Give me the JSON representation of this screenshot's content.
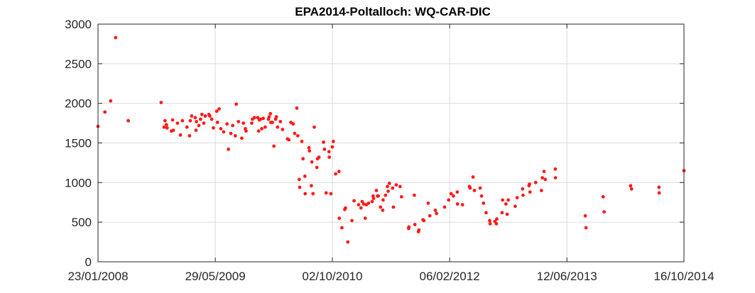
{
  "chart_data": {
    "type": "scatter",
    "title": "EPA2014-Poltalloch: WQ-CAR-DIC",
    "xlabel": "",
    "ylabel": "",
    "x_type": "date",
    "xlim": [
      "2008-01-23",
      "2014-10-16"
    ],
    "ylim": [
      0,
      3000
    ],
    "x_ticks": [
      "2008-01-23",
      "2009-05-29",
      "2010-10-02",
      "2012-02-06",
      "2013-06-12",
      "2014-10-16"
    ],
    "x_tick_labels": [
      "23/01/2008",
      "29/05/2009",
      "02/10/2010",
      "06/02/2012",
      "12/06/2013",
      "16/10/2014"
    ],
    "y_ticks": [
      0,
      500,
      1000,
      1500,
      2000,
      2500,
      3000
    ],
    "y_tick_labels": [
      "0",
      "500",
      "1000",
      "1500",
      "2000",
      "2500",
      "3000"
    ],
    "grid": true,
    "marker_color": "#ff1a1a",
    "series": [
      {
        "points": [
          [
            "2008-01-23",
            1710
          ],
          [
            "2008-02-21",
            1890
          ],
          [
            "2008-03-16",
            2030
          ],
          [
            "2008-04-06",
            2830
          ],
          [
            "2008-05-29",
            1780
          ],
          [
            "2008-10-14",
            2010
          ],
          [
            "2008-10-26",
            1700
          ],
          [
            "2008-10-30",
            1780
          ],
          [
            "2008-11-05",
            1730
          ],
          [
            "2008-11-08",
            1690
          ],
          [
            "2008-11-26",
            1650
          ],
          [
            "2008-12-01",
            1790
          ],
          [
            "2008-12-04",
            1660
          ],
          [
            "2008-12-21",
            1750
          ],
          [
            "2009-01-03",
            1600
          ],
          [
            "2009-01-11",
            1780
          ],
          [
            "2009-01-30",
            1700
          ],
          [
            "2009-02-10",
            1590
          ],
          [
            "2009-02-13",
            1780
          ],
          [
            "2009-02-19",
            1840
          ],
          [
            "2009-03-06",
            1820
          ],
          [
            "2009-03-09",
            1660
          ],
          [
            "2009-03-11",
            1770
          ],
          [
            "2009-03-21",
            1720
          ],
          [
            "2009-03-28",
            1800
          ],
          [
            "2009-04-03",
            1860
          ],
          [
            "2009-04-11",
            1750
          ],
          [
            "2009-04-17",
            1840
          ],
          [
            "2009-05-02",
            1860
          ],
          [
            "2009-05-06",
            1840
          ],
          [
            "2009-05-14",
            1800
          ],
          [
            "2009-05-21",
            1690
          ],
          [
            "2009-06-04",
            1900
          ],
          [
            "2009-06-07",
            1760
          ],
          [
            "2009-06-14",
            1930
          ],
          [
            "2009-06-21",
            1680
          ],
          [
            "2009-07-03",
            1640
          ],
          [
            "2009-07-17",
            1740
          ],
          [
            "2009-07-23",
            1420
          ],
          [
            "2009-08-02",
            1620
          ],
          [
            "2009-08-10",
            1720
          ],
          [
            "2009-08-21",
            1590
          ],
          [
            "2009-08-25",
            1990
          ],
          [
            "2009-09-03",
            1770
          ],
          [
            "2009-09-17",
            1560
          ],
          [
            "2009-09-24",
            1750
          ],
          [
            "2009-10-02",
            1680
          ],
          [
            "2009-10-05",
            1650
          ],
          [
            "2009-10-29",
            1750
          ],
          [
            "2009-11-01",
            1800
          ],
          [
            "2009-11-09",
            1820
          ],
          [
            "2009-11-23",
            1820
          ],
          [
            "2009-11-27",
            1650
          ],
          [
            "2009-11-30",
            1790
          ],
          [
            "2009-12-05",
            1800
          ],
          [
            "2009-12-10",
            1680
          ],
          [
            "2009-12-16",
            1810
          ],
          [
            "2009-12-24",
            1700
          ],
          [
            "2010-01-07",
            1800
          ],
          [
            "2010-01-10",
            1830
          ],
          [
            "2010-01-15",
            1870
          ],
          [
            "2010-01-17",
            1760
          ],
          [
            "2010-01-23",
            1760
          ],
          [
            "2010-01-30",
            1460
          ],
          [
            "2010-02-06",
            1800
          ],
          [
            "2010-02-09",
            1830
          ],
          [
            "2010-02-14",
            1700
          ],
          [
            "2010-02-26",
            1770
          ],
          [
            "2010-03-07",
            1670
          ],
          [
            "2010-03-28",
            1550
          ],
          [
            "2010-04-03",
            1540
          ],
          [
            "2010-04-11",
            1760
          ],
          [
            "2010-04-21",
            1740
          ],
          [
            "2010-04-27",
            1620
          ],
          [
            "2010-05-06",
            1940
          ],
          [
            "2010-05-10",
            1590
          ],
          [
            "2010-05-16",
            1040
          ],
          [
            "2010-05-18",
            940
          ],
          [
            "2010-05-27",
            1520
          ],
          [
            "2010-06-01",
            1300
          ],
          [
            "2010-06-09",
            1080
          ],
          [
            "2010-06-10",
            860
          ],
          [
            "2010-06-26",
            1440
          ],
          [
            "2010-06-28",
            1400
          ],
          [
            "2010-07-06",
            960
          ],
          [
            "2010-07-08",
            1260
          ],
          [
            "2010-07-13",
            860
          ],
          [
            "2010-07-18",
            1700
          ],
          [
            "2010-07-29",
            1190
          ],
          [
            "2010-08-01",
            1300
          ],
          [
            "2010-08-07",
            1320
          ],
          [
            "2010-08-26",
            1510
          ],
          [
            "2010-08-30",
            1420
          ],
          [
            "2010-09-06",
            870
          ],
          [
            "2010-09-18",
            1390
          ],
          [
            "2010-09-19",
            1320
          ],
          [
            "2010-09-26",
            860
          ],
          [
            "2010-10-02",
            1450
          ],
          [
            "2010-10-06",
            1520
          ],
          [
            "2010-10-16",
            1110
          ],
          [
            "2010-10-30",
            1140
          ],
          [
            "2010-10-31",
            550
          ],
          [
            "2010-11-11",
            430
          ],
          [
            "2010-11-23",
            660
          ],
          [
            "2010-11-26",
            680
          ],
          [
            "2010-12-06",
            250
          ],
          [
            "2010-12-23",
            520
          ],
          [
            "2011-01-01",
            770
          ],
          [
            "2011-01-20",
            720
          ],
          [
            "2011-01-30",
            680
          ],
          [
            "2011-02-04",
            760
          ],
          [
            "2011-02-11",
            730
          ],
          [
            "2011-02-17",
            550
          ],
          [
            "2011-02-22",
            720
          ],
          [
            "2011-03-03",
            740
          ],
          [
            "2011-03-18",
            760
          ],
          [
            "2011-03-22",
            830
          ],
          [
            "2011-03-24",
            800
          ],
          [
            "2011-04-05",
            900
          ],
          [
            "2011-04-09",
            830
          ],
          [
            "2011-04-13",
            830
          ],
          [
            "2011-04-22",
            690
          ],
          [
            "2011-05-01",
            650
          ],
          [
            "2011-05-03",
            780
          ],
          [
            "2011-05-13",
            840
          ],
          [
            "2011-05-21",
            950
          ],
          [
            "2011-05-24",
            890
          ],
          [
            "2011-05-29",
            990
          ],
          [
            "2011-06-12",
            930
          ],
          [
            "2011-06-15",
            690
          ],
          [
            "2011-06-27",
            970
          ],
          [
            "2011-07-13",
            950
          ],
          [
            "2011-07-19",
            820
          ],
          [
            "2011-08-18",
            420
          ],
          [
            "2011-08-19",
            440
          ],
          [
            "2011-09-11",
            840
          ],
          [
            "2011-09-13",
            470
          ],
          [
            "2011-09-28",
            380
          ],
          [
            "2011-09-30",
            400
          ],
          [
            "2011-10-17",
            530
          ],
          [
            "2011-10-21",
            520
          ],
          [
            "2011-11-08",
            740
          ],
          [
            "2011-11-15",
            580
          ],
          [
            "2011-12-08",
            650
          ],
          [
            "2011-12-13",
            610
          ],
          [
            "2012-01-16",
            690
          ],
          [
            "2012-02-02",
            780
          ],
          [
            "2012-02-12",
            860
          ],
          [
            "2012-02-22",
            830
          ],
          [
            "2012-03-09",
            880
          ],
          [
            "2012-03-10",
            730
          ],
          [
            "2012-03-31",
            720
          ],
          [
            "2012-04-29",
            950
          ],
          [
            "2012-05-02",
            930
          ],
          [
            "2012-05-14",
            1070
          ],
          [
            "2012-05-20",
            900
          ],
          [
            "2012-06-13",
            930
          ],
          [
            "2012-06-19",
            830
          ],
          [
            "2012-06-27",
            740
          ],
          [
            "2012-07-08",
            620
          ],
          [
            "2012-07-23",
            520
          ],
          [
            "2012-07-25",
            480
          ],
          [
            "2012-08-14",
            510
          ],
          [
            "2012-08-20",
            480
          ],
          [
            "2012-08-22",
            540
          ],
          [
            "2012-09-13",
            620
          ],
          [
            "2012-09-15",
            780
          ],
          [
            "2012-09-29",
            730
          ],
          [
            "2012-10-04",
            600
          ],
          [
            "2012-10-09",
            780
          ],
          [
            "2012-11-07",
            700
          ],
          [
            "2012-11-15",
            810
          ],
          [
            "2012-12-08",
            920
          ],
          [
            "2012-12-10",
            840
          ],
          [
            "2013-01-04",
            960
          ],
          [
            "2013-01-06",
            980
          ],
          [
            "2013-01-08",
            880
          ],
          [
            "2013-02-01",
            1000
          ],
          [
            "2013-02-25",
            900
          ],
          [
            "2013-03-01",
            1060
          ],
          [
            "2013-03-08",
            1140
          ],
          [
            "2013-03-13",
            1040
          ],
          [
            "2013-04-24",
            1170
          ],
          [
            "2013-04-25",
            1060
          ],
          [
            "2013-08-28",
            580
          ],
          [
            "2013-08-31",
            430
          ],
          [
            "2013-11-11",
            820
          ],
          [
            "2013-11-15",
            630
          ],
          [
            "2014-03-06",
            960
          ],
          [
            "2014-03-10",
            920
          ],
          [
            "2014-07-03",
            940
          ],
          [
            "2014-07-04",
            870
          ],
          [
            "2014-10-16",
            1150
          ]
        ]
      }
    ]
  }
}
